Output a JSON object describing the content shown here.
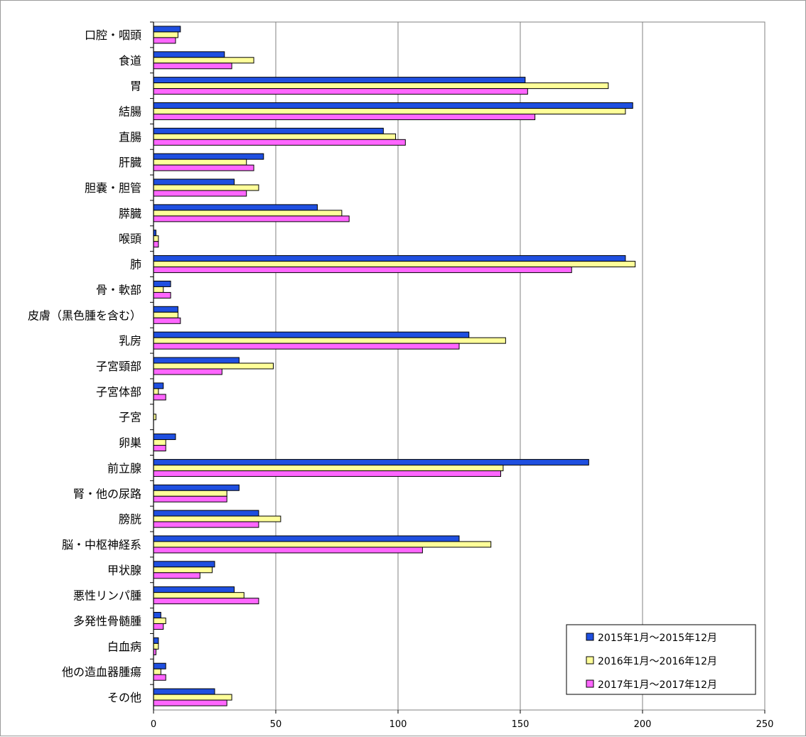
{
  "chart_data": {
    "type": "bar",
    "orientation": "horizontal",
    "categories": [
      "口腔・咽頭",
      "食道",
      "胃",
      "結腸",
      "直腸",
      "肝臓",
      "胆嚢・胆管",
      "膵臓",
      "喉頭",
      "肺",
      "骨・軟部",
      "皮膚（黒色腫を含む）",
      "乳房",
      "子宮頸部",
      "子宮体部",
      "子宮",
      "卵巣",
      "前立腺",
      "腎・他の尿路",
      "膀胱",
      "脳・中枢神経系",
      "甲状腺",
      "悪性リンパ腫",
      "多発性骨髄腫",
      "白血病",
      "他の造血器腫瘍",
      "その他"
    ],
    "series": [
      {
        "name": "2015年1月～2015年12月",
        "color": "#1f4fe0",
        "values": [
          11,
          29,
          152,
          196,
          94,
          45,
          33,
          67,
          1,
          193,
          7,
          10,
          129,
          35,
          4,
          0,
          9,
          178,
          35,
          43,
          125,
          25,
          33,
          3,
          2,
          5,
          25
        ]
      },
      {
        "name": "2016年1月～2016年12月",
        "color": "#ffff99",
        "values": [
          10,
          41,
          186,
          193,
          99,
          38,
          43,
          77,
          2,
          197,
          4,
          10,
          144,
          49,
          2,
          1,
          5,
          143,
          30,
          52,
          138,
          24,
          37,
          5,
          2,
          3,
          32
        ]
      },
      {
        "name": "2017年1月～2017年12月",
        "color": "#ff66ff",
        "values": [
          9,
          32,
          153,
          156,
          103,
          41,
          38,
          80,
          2,
          171,
          7,
          11,
          125,
          28,
          5,
          0,
          5,
          142,
          30,
          43,
          110,
          19,
          43,
          4,
          1,
          5,
          30
        ]
      }
    ],
    "xlim": [
      0,
      250
    ],
    "xticks": [
      "0",
      "50",
      "100",
      "150",
      "200",
      "250"
    ],
    "grid": true,
    "legend_position": "bottom-right"
  }
}
